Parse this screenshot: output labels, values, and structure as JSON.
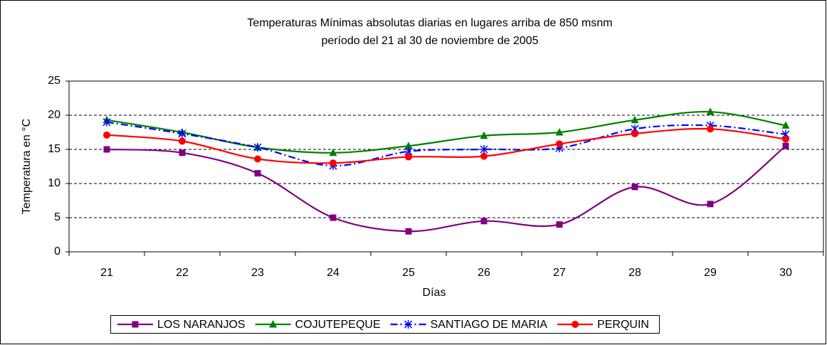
{
  "chart_data": {
    "type": "line",
    "title": "Temperaturas Mínimas absolutas diarias en lugares arriba de 850 msnm",
    "subtitle": "período del 21 al 30 de noviembre de 2005",
    "x_label": "Días",
    "y_label": "Temperatura en °C",
    "categories": [
      "21",
      "22",
      "23",
      "24",
      "25",
      "26",
      "27",
      "28",
      "29",
      "30"
    ],
    "series": [
      {
        "name": "LOS NARANJOS",
        "color": "#800080",
        "marker": "square",
        "line_style": "solid",
        "values": [
          15,
          14.5,
          11.5,
          5,
          3,
          4.5,
          4,
          9.5,
          7,
          15.5
        ]
      },
      {
        "name": "COJUTEPEQUE",
        "color": "#008000",
        "marker": "triangle",
        "line_style": "solid",
        "values": [
          19.3,
          17.5,
          15.3,
          14.5,
          15.5,
          17,
          17.5,
          19.3,
          20.5,
          18.5
        ]
      },
      {
        "name": "SANTIAGO DE MARIA",
        "color": "#0000ff",
        "marker": "asterisk",
        "line_style": "dash-dot",
        "values": [
          19,
          17.3,
          15.3,
          12.6,
          14.7,
          15,
          15.2,
          18,
          18.5,
          17.2
        ]
      },
      {
        "name": "PERQUIN",
        "color": "#ff0000",
        "marker": "circle",
        "line_style": "solid",
        "values": [
          17.1,
          16.2,
          13.6,
          13,
          13.9,
          14,
          15.8,
          17.3,
          18,
          16.5
        ]
      }
    ],
    "ylim": [
      0,
      25
    ],
    "yticks": [
      0,
      5,
      10,
      15,
      20,
      25
    ],
    "grid": true,
    "smooth": true,
    "legend": "bottom"
  }
}
